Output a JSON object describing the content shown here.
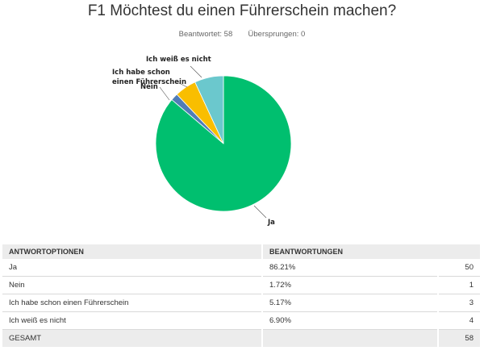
{
  "question": {
    "title": "F1 Möchtest du einen Führerschein machen?",
    "answered_label": "Beantwortet:",
    "answered": "58",
    "skipped_label": "Übersprungen:",
    "skipped": "0"
  },
  "chart_data": {
    "type": "pie",
    "title": "F1 Möchtest du einen Führerschein machen?",
    "categories": [
      "Ja",
      "Nein",
      "Ich habe schon einen Führerschein",
      "Ich weiß es nicht"
    ],
    "values": [
      50,
      1,
      3,
      4
    ],
    "percentages": [
      86.21,
      1.72,
      5.17,
      6.9
    ],
    "colors": [
      "#00bf6f",
      "#507cb6",
      "#f9be00",
      "#6bc8cd"
    ],
    "slice_labels": [
      "Ja",
      "Nein",
      "Ich habe schon einen Führerschein",
      "Ich weiß es nicht"
    ]
  },
  "table": {
    "headers": [
      "ANTWORTOPTIONEN",
      "BEANTWORTUNGEN"
    ],
    "rows": [
      {
        "option": "Ja",
        "percent": "86.21%",
        "count": "50"
      },
      {
        "option": "Nein",
        "percent": "1.72%",
        "count": "1"
      },
      {
        "option": "Ich habe schon einen Führerschein",
        "percent": "5.17%",
        "count": "3"
      },
      {
        "option": "Ich weiß es nicht",
        "percent": "6.90%",
        "count": "4"
      }
    ],
    "total_label": "GESAMT",
    "total_count": "58"
  }
}
